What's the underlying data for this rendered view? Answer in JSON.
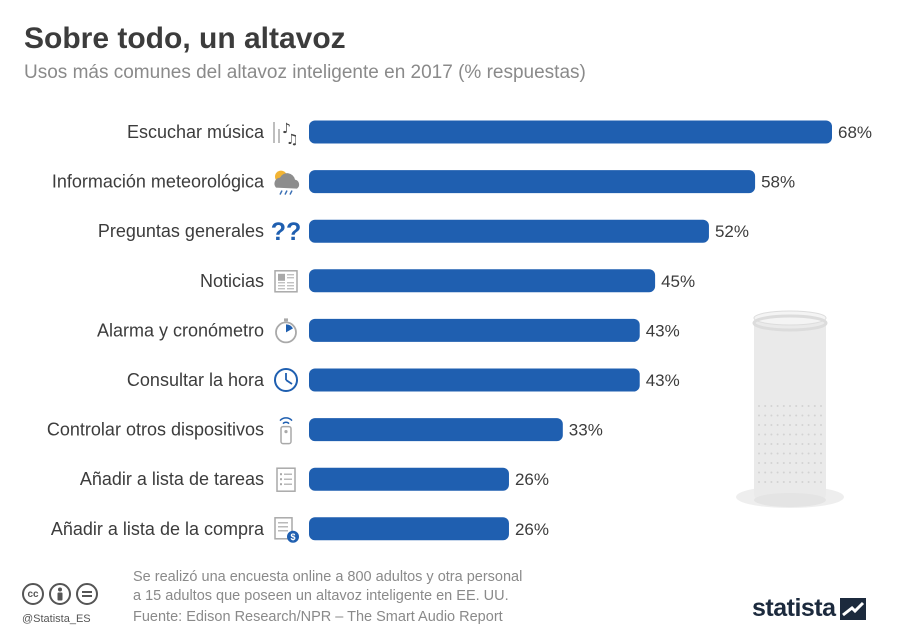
{
  "header": {
    "title": "Sobre todo, un altavoz",
    "subtitle": "Usos más comunes del altavoz inteligente en 2017 (% respuestas)"
  },
  "chart_data": {
    "type": "bar",
    "orientation": "horizontal",
    "title": "Sobre todo, un altavoz",
    "subtitle": "Usos más comunes del altavoz inteligente en 2017 (% respuestas)",
    "categories": [
      "Escuchar música",
      "Información meteorológica",
      "Preguntas generales",
      "Noticias",
      "Alarma y cronómetro",
      "Consultar la hora",
      "Controlar otros dispositivos",
      "Añadir a lista de tareas",
      "Añadir a lista de la compra"
    ],
    "values": [
      68,
      58,
      52,
      45,
      43,
      43,
      33,
      26,
      26
    ],
    "value_labels": [
      "68%",
      "58%",
      "52%",
      "45%",
      "43%",
      "43%",
      "33%",
      "26%",
      "26%"
    ],
    "icons": [
      "music-notes-icon",
      "weather-icon",
      "question-marks-icon",
      "newspaper-icon",
      "stopwatch-icon",
      "clock-icon",
      "remote-control-icon",
      "task-list-icon",
      "shopping-list-icon"
    ],
    "unit": "%",
    "xlim": [
      0,
      68
    ],
    "bar_color": "#1f5fb0",
    "grid": false
  },
  "footer": {
    "note_line1": "Se realizó una encuesta online a 800 adultos y otra personal",
    "note_line2": "a 15 adultos que poseen un altavoz inteligente en EE. UU.",
    "source": "Fuente:  Edison Research/NPR – The Smart Audio Report",
    "handle": "@Statista_ES",
    "logo": "statista",
    "cc_icons": [
      "cc-icon",
      "by-person-icon",
      "nd-equals-icon"
    ]
  }
}
